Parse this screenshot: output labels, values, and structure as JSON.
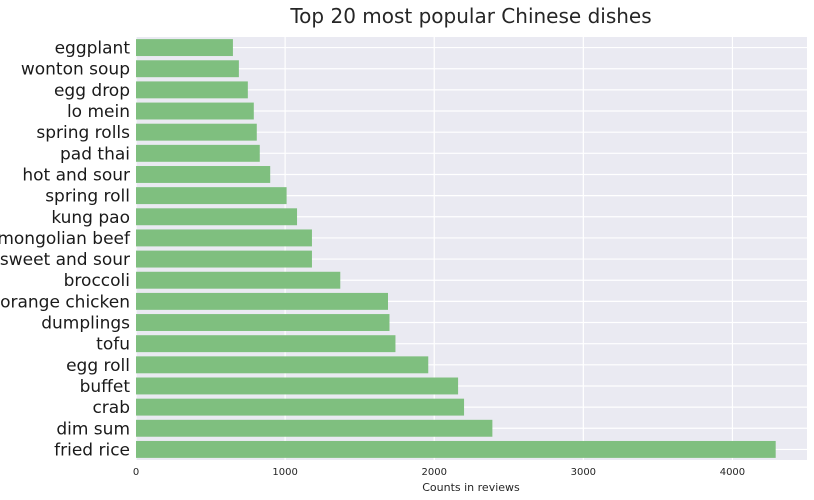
{
  "chart_data": {
    "type": "bar",
    "orientation": "horizontal",
    "title": "Top 20 most popular Chinese dishes",
    "xlabel": "Counts in reviews",
    "ylabel": "",
    "xlim": [
      0,
      4500
    ],
    "xticks": [
      0,
      1000,
      2000,
      3000,
      4000
    ],
    "grid": true,
    "bar_color": "#7fbf7f",
    "background_color": "#eaeaf2",
    "categories": [
      "fried rice",
      "dim sum",
      "crab",
      "buffet",
      "egg roll",
      "tofu",
      "dumplings",
      "orange chicken",
      "broccoli",
      "sweet and sour",
      "mongolian beef",
      "kung pao",
      "spring roll",
      "hot and sour",
      "pad thai",
      "spring rolls",
      "lo mein",
      "egg drop",
      "wonton soup",
      "eggplant"
    ],
    "values": [
      4290,
      2390,
      2200,
      2160,
      1960,
      1740,
      1700,
      1690,
      1370,
      1180,
      1180,
      1080,
      1010,
      900,
      830,
      810,
      790,
      750,
      690,
      650
    ]
  }
}
